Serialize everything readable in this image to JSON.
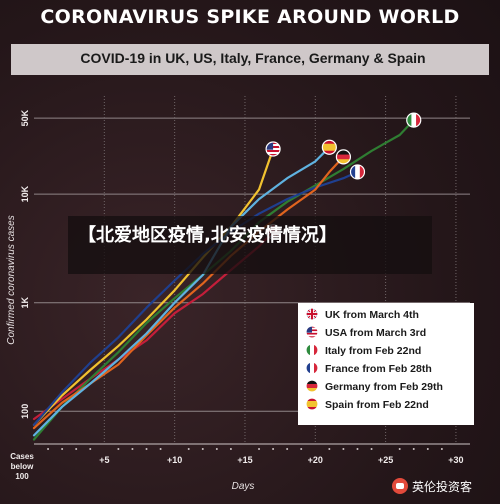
{
  "header": {
    "title": "CORONAVIRUS SPIKE AROUND WORLD",
    "subtitle": "COVID-19 in UK, US, Italy, France, Germany & Spain"
  },
  "overlay": {
    "text": "【北爱地区疫情,北安疫情情况】"
  },
  "watermark": {
    "text": "英伦投资客"
  },
  "chart_data": {
    "type": "line",
    "title": "COVID-19 in UK, US, Italy, France, Germany & Spain",
    "xlabel": "Days",
    "ylabel": "Confirmed coronavirus cases",
    "x_origin_label": "Cases below 100",
    "x_ticks": [
      "+5",
      "+10",
      "+15",
      "+20",
      "+25",
      "+30"
    ],
    "y_ticks": [
      "100",
      "1K",
      "10K",
      "50K"
    ],
    "y_scale": "log",
    "xlim": [
      0,
      31
    ],
    "ylim": [
      50,
      80000
    ],
    "grid": true,
    "legend_position": "bottom-right",
    "series": [
      {
        "name": "UK from March 4th",
        "color": "#c41e3a",
        "flag": "uk",
        "points": [
          [
            0,
            85
          ],
          [
            2,
            130
          ],
          [
            4,
            200
          ],
          [
            6,
            300
          ],
          [
            8,
            450
          ],
          [
            10,
            800
          ],
          [
            12,
            1200
          ],
          [
            14,
            2000
          ],
          [
            16,
            3300
          ],
          [
            17,
            4500
          ]
        ]
      },
      {
        "name": "USA from March 3rd",
        "color": "#f2c230",
        "flag": "usa",
        "points": [
          [
            0,
            75
          ],
          [
            2,
            140
          ],
          [
            4,
            240
          ],
          [
            6,
            400
          ],
          [
            8,
            700
          ],
          [
            10,
            1300
          ],
          [
            12,
            2600
          ],
          [
            14,
            5000
          ],
          [
            16,
            11000
          ],
          [
            17,
            26000
          ]
        ]
      },
      {
        "name": "Italy from Feb 22nd",
        "color": "#2f7d32",
        "flag": "italy",
        "points": [
          [
            0,
            55
          ],
          [
            2,
            110
          ],
          [
            4,
            200
          ],
          [
            6,
            350
          ],
          [
            8,
            650
          ],
          [
            10,
            1100
          ],
          [
            12,
            1800
          ],
          [
            14,
            3000
          ],
          [
            16,
            5500
          ],
          [
            18,
            8500
          ],
          [
            20,
            12000
          ],
          [
            22,
            17000
          ],
          [
            24,
            25000
          ],
          [
            26,
            35000
          ],
          [
            27,
            48000
          ]
        ]
      },
      {
        "name": "France from Feb 28th",
        "color": "#1f3f8f",
        "flag": "france",
        "points": [
          [
            0,
            75
          ],
          [
            2,
            150
          ],
          [
            4,
            280
          ],
          [
            6,
            480
          ],
          [
            8,
            900
          ],
          [
            10,
            1600
          ],
          [
            12,
            2800
          ],
          [
            14,
            4500
          ],
          [
            16,
            6600
          ],
          [
            18,
            9000
          ],
          [
            20,
            11500
          ],
          [
            22,
            14000
          ],
          [
            23,
            16000
          ]
        ]
      },
      {
        "name": "Germany from Feb 29th",
        "color": "#e0641e",
        "flag": "germany",
        "points": [
          [
            0,
            70
          ],
          [
            2,
            120
          ],
          [
            4,
            180
          ],
          [
            6,
            270
          ],
          [
            8,
            500
          ],
          [
            10,
            900
          ],
          [
            12,
            1500
          ],
          [
            14,
            2700
          ],
          [
            16,
            4500
          ],
          [
            18,
            7200
          ],
          [
            20,
            11000
          ],
          [
            21,
            16000
          ],
          [
            22,
            22000
          ]
        ]
      },
      {
        "name": "Spain from Feb 22nd",
        "color": "#5fb2e0",
        "flag": "spain",
        "points": [
          [
            0,
            60
          ],
          [
            2,
            110
          ],
          [
            4,
            180
          ],
          [
            6,
            300
          ],
          [
            8,
            520
          ],
          [
            10,
            1000
          ],
          [
            12,
            1800
          ],
          [
            14,
            5000
          ],
          [
            16,
            9000
          ],
          [
            18,
            14000
          ],
          [
            20,
            20000
          ],
          [
            21,
            27000
          ]
        ]
      }
    ]
  }
}
